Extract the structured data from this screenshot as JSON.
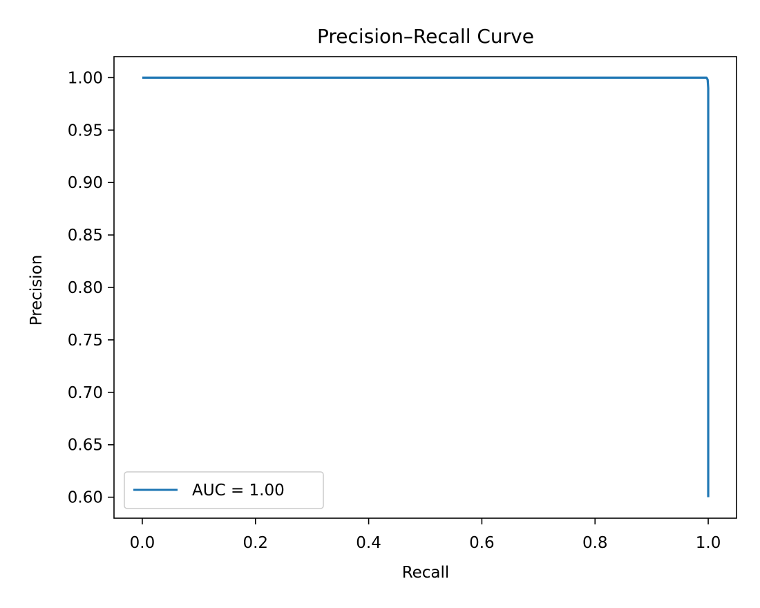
{
  "chart_data": {
    "type": "line",
    "title": "Precision–Recall Curve",
    "xlabel": "Recall",
    "ylabel": "Precision",
    "xlim": [
      -0.05,
      1.05
    ],
    "ylim": [
      0.58,
      1.02
    ],
    "xticks": [
      "0.0",
      "0.2",
      "0.4",
      "0.6",
      "0.8",
      "1.0"
    ],
    "yticks": [
      "0.60",
      "0.65",
      "0.70",
      "0.75",
      "0.80",
      "0.85",
      "0.90",
      "0.95",
      "1.00"
    ],
    "grid": false,
    "legend_position": "lower-left",
    "series": [
      {
        "name": "AUC = 1.00",
        "color": "#1f77b4",
        "x": [
          0.0,
          0.2,
          0.4,
          0.6,
          0.8,
          0.99,
          0.997,
          0.998,
          0.999,
          1.0,
          1.0
        ],
        "y": [
          1.0,
          1.0,
          1.0,
          1.0,
          1.0,
          1.0,
          1.0,
          0.999,
          0.998,
          0.99,
          0.6
        ]
      }
    ]
  }
}
